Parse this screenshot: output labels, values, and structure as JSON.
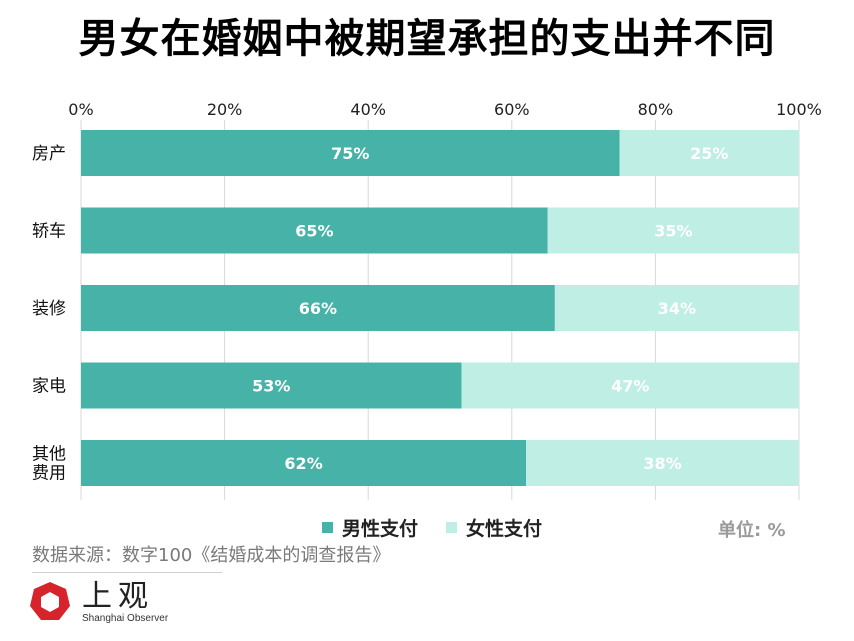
{
  "chart_data": {
    "type": "bar",
    "orientation": "horizontal",
    "stacked": true,
    "title": "男女在婚姻中被期望承担的支出并不同",
    "categories": [
      [
        "房产"
      ],
      [
        "轿车"
      ],
      [
        "装修"
      ],
      [
        "家电"
      ],
      [
        "其他",
        "费用"
      ]
    ],
    "series": [
      {
        "name": "男性支付",
        "color": "#47b3a8",
        "values": [
          75,
          65,
          66,
          53,
          62
        ],
        "labels": [
          "75%",
          "65%",
          "66%",
          "53%",
          "62%"
        ]
      },
      {
        "name": "女性支付",
        "color": "#bfeee4",
        "values": [
          25,
          35,
          34,
          47,
          38
        ],
        "labels": [
          "25%",
          "35%",
          "34%",
          "47%",
          "38%"
        ]
      }
    ],
    "xlim": [
      0,
      100
    ],
    "x_ticks": [
      "0%",
      "20%",
      "40%",
      "60%",
      "80%",
      "100%"
    ],
    "grid": true,
    "legend_position": "bottom",
    "unit_label": "单位: %"
  },
  "source": "数据来源：数字100《结婚成本的调查报告》",
  "logo": {
    "name": "上观",
    "subtitle": "Shanghai Observer",
    "color": "#d7232b"
  }
}
